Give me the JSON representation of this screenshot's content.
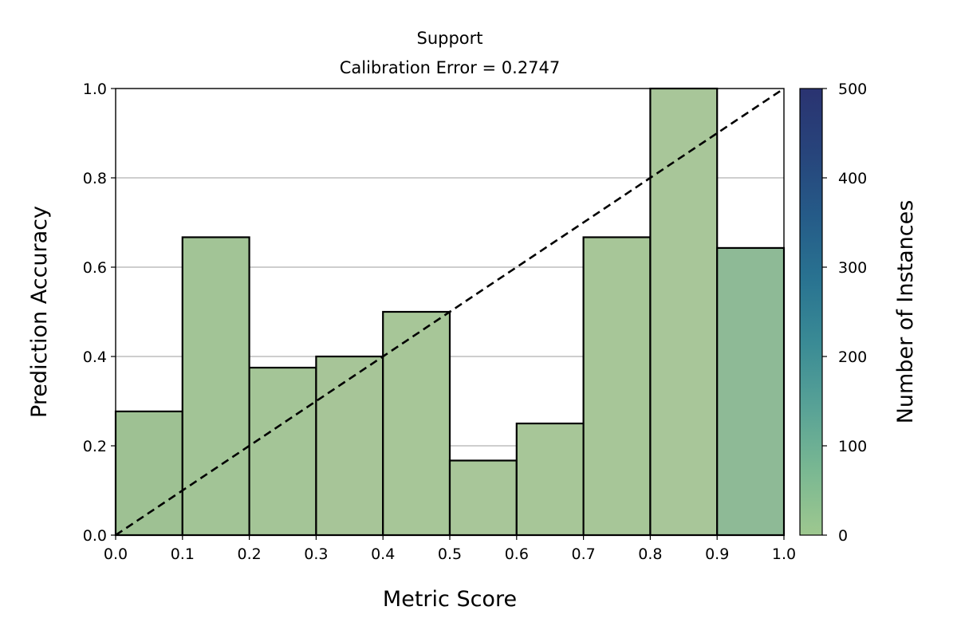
{
  "chart_data": {
    "type": "bar",
    "title": "Support",
    "subtitle": "Calibration Error = 0.2747",
    "xlabel": "Metric Score",
    "ylabel": "Prediction Accuracy",
    "xlim": [
      0.0,
      1.0
    ],
    "ylim": [
      0.0,
      1.0
    ],
    "xticks": [
      "0.0",
      "0.1",
      "0.2",
      "0.3",
      "0.4",
      "0.5",
      "0.6",
      "0.7",
      "0.8",
      "0.9",
      "1.0"
    ],
    "yticks": [
      "0.0",
      "0.2",
      "0.4",
      "0.6",
      "0.8",
      "1.0"
    ],
    "grid": "horizontal",
    "bins": [
      {
        "x0": 0.0,
        "x1": 0.1,
        "value": 0.277,
        "color": "#9ec193"
      },
      {
        "x0": 0.1,
        "x1": 0.2,
        "value": 0.667,
        "color": "#a2c496"
      },
      {
        "x0": 0.2,
        "x1": 0.3,
        "value": 0.375,
        "color": "#a4c597"
      },
      {
        "x0": 0.3,
        "x1": 0.4,
        "value": 0.4,
        "color": "#a7c598"
      },
      {
        "x0": 0.4,
        "x1": 0.5,
        "value": 0.5,
        "color": "#a7c698"
      },
      {
        "x0": 0.5,
        "x1": 0.6,
        "value": 0.167,
        "color": "#a8c699"
      },
      {
        "x0": 0.6,
        "x1": 0.7,
        "value": 0.25,
        "color": "#a7c698"
      },
      {
        "x0": 0.7,
        "x1": 0.8,
        "value": 0.667,
        "color": "#a7c698"
      },
      {
        "x0": 0.8,
        "x1": 0.9,
        "value": 1.0,
        "color": "#a8c699"
      },
      {
        "x0": 0.9,
        "x1": 1.0,
        "value": 0.643,
        "color": "#8eba96"
      }
    ],
    "reference_line": {
      "from": [
        0.0,
        0.0
      ],
      "to": [
        1.0,
        1.0
      ],
      "style": "dashed"
    },
    "colorbar": {
      "label": "Number of Instances",
      "range": [
        0,
        500
      ],
      "ticks": [
        "0",
        "100",
        "200",
        "300",
        "400",
        "500"
      ],
      "colors": [
        "#9ec88f",
        "#7ab892",
        "#58a296",
        "#3a8b95",
        "#297391",
        "#255b88",
        "#27447b",
        "#2a3371"
      ]
    }
  }
}
